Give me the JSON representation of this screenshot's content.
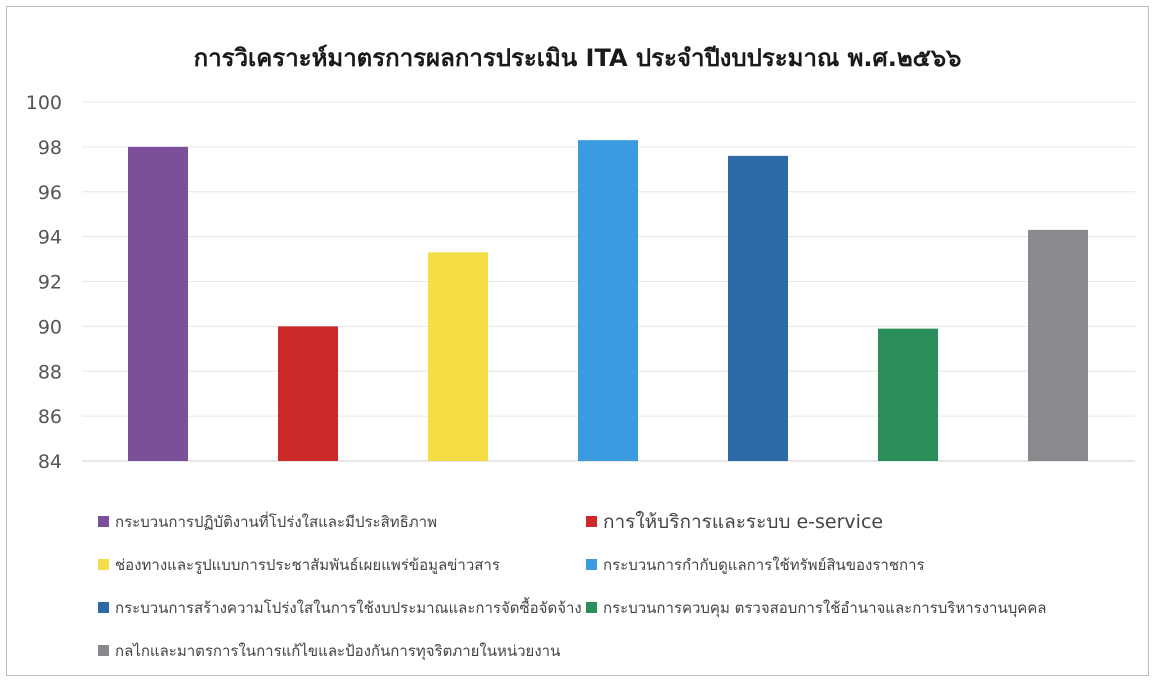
{
  "chart_data": {
    "type": "bar",
    "title": "การวิเคราะห์มาตรการผลการประเมิน ITA ประจำปีงบประมาณ พ.ศ.๒๕๖๖",
    "xlabel": "",
    "ylabel": "",
    "ylim": [
      84,
      100
    ],
    "yticks": [
      84,
      86,
      88,
      90,
      92,
      94,
      96,
      98,
      100
    ],
    "grid": true,
    "legend_position": "bottom",
    "series": [
      {
        "name": "กระบวนการปฏิบัติงานที่โปร่งใสและมีประสิทธิภาพ",
        "value": 98.0,
        "color": "#7b4f9a"
      },
      {
        "name": "การให้บริการและระบบ e-service",
        "value": 90.0,
        "color": "#cc2a2a"
      },
      {
        "name": "ช่องทางและรูปแบบการประชาสัมพันธ์เผยแพร่ข้อมูลข่าวสาร",
        "value": 93.3,
        "color": "#f4dd45"
      },
      {
        "name": "กระบวนการกำกับดูแลการใช้ทรัพย์สินของราชการ",
        "value": 98.3,
        "color": "#3b9be0"
      },
      {
        "name": "กระบวนการสร้างความโปร่งใสในการใช้งบประมาณและการจัดซื้อจัดจ้าง",
        "value": 97.6,
        "color": "#2e6aa5"
      },
      {
        "name": "กระบวนการควบคุม ตรวจสอบการใช้อำนาจและการบริหารงานบุคคล",
        "value": 89.9,
        "color": "#2a8f5a"
      },
      {
        "name": "กลไกและมาตรการในการแก้ไขและป้องกันการทุจริตภายในหน่วยงาน",
        "value": 94.3,
        "color": "#8a8a8e"
      }
    ]
  }
}
